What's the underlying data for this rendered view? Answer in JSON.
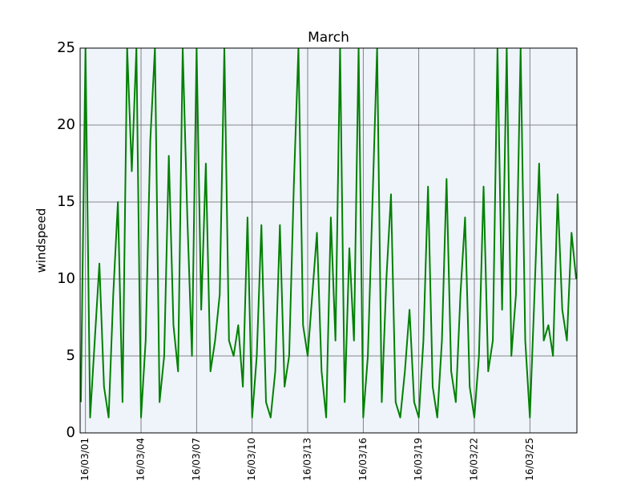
{
  "chart_data": {
    "type": "line",
    "title": "March",
    "y_label": "windspeed",
    "x": [
      0.75,
      1,
      1.25,
      1.5,
      1.75,
      2,
      2.25,
      2.5,
      2.75,
      3,
      3.25,
      3.5,
      3.75,
      4,
      4.25,
      4.5,
      4.75,
      5,
      5.25,
      5.5,
      5.75,
      6,
      6.25,
      6.5,
      6.75,
      7,
      7.25,
      7.5,
      7.75,
      8,
      8.25,
      8.5,
      8.75,
      9,
      9.25,
      9.5,
      9.75,
      10,
      10.25,
      10.5,
      10.75,
      11,
      11.25,
      11.5,
      11.75,
      12,
      12.25,
      12.5,
      12.75,
      13,
      13.25,
      13.5,
      13.75,
      14,
      14.25,
      14.5,
      14.75,
      15,
      15.25,
      15.5,
      15.75,
      16,
      16.25,
      16.5,
      16.75,
      17,
      17.25,
      17.5,
      17.75,
      18,
      18.25,
      18.5,
      18.75,
      19,
      19.25,
      19.5,
      19.75,
      20,
      20.25,
      20.5,
      20.75,
      21,
      21.25,
      21.5,
      21.75,
      22,
      22.25,
      22.5,
      22.75,
      23,
      23.25,
      23.5,
      23.75,
      24,
      24.25,
      24.5,
      24.75,
      25,
      25.25,
      25.5,
      25.75,
      26,
      26.25,
      26.5,
      26.75,
      27,
      27.25,
      27.5
    ],
    "series": [
      {
        "name": "windspeed",
        "color": "#008000",
        "values": [
          2,
          25,
          1,
          6,
          11,
          3,
          1,
          9,
          15,
          2,
          25,
          17,
          25,
          1,
          6,
          19,
          25,
          2,
          5,
          18,
          7,
          4,
          25,
          14,
          5,
          25,
          8,
          17.5,
          4,
          6,
          9,
          25,
          6,
          5,
          7,
          3,
          14,
          1,
          5,
          13.5,
          2,
          1,
          4,
          13.5,
          3,
          5,
          16,
          25,
          7,
          5,
          9,
          13,
          4,
          1,
          14,
          6,
          25,
          2,
          12,
          6,
          25,
          1,
          5,
          15,
          25,
          2,
          10,
          15.5,
          2,
          1,
          4,
          8,
          2,
          1,
          6,
          16,
          3,
          1,
          6,
          16.5,
          4,
          2,
          9,
          14,
          3,
          1,
          5,
          16,
          4,
          6,
          25,
          8,
          25,
          5,
          9,
          25,
          6,
          1,
          9,
          17.5,
          6,
          7,
          5,
          15.5,
          8,
          6,
          13,
          10
        ]
      }
    ],
    "xlim": [
      0.71,
      27.54
    ],
    "xticks": [
      {
        "value": 1,
        "label": "2016/03/01"
      },
      {
        "value": 4,
        "label": "2016/03/04"
      },
      {
        "value": 7,
        "label": "2016/03/07"
      },
      {
        "value": 10,
        "label": "2016/03/10"
      },
      {
        "value": 13,
        "label": "2016/03/13"
      },
      {
        "value": 16,
        "label": "2016/03/16"
      },
      {
        "value": 19,
        "label": "2016/03/19"
      },
      {
        "value": 22,
        "label": "2016/03/22"
      },
      {
        "value": 25,
        "label": "2016/03/25"
      }
    ],
    "ylim": [
      0,
      25
    ],
    "yticks": [
      0,
      5,
      10,
      15,
      20,
      25
    ],
    "grid": true
  }
}
